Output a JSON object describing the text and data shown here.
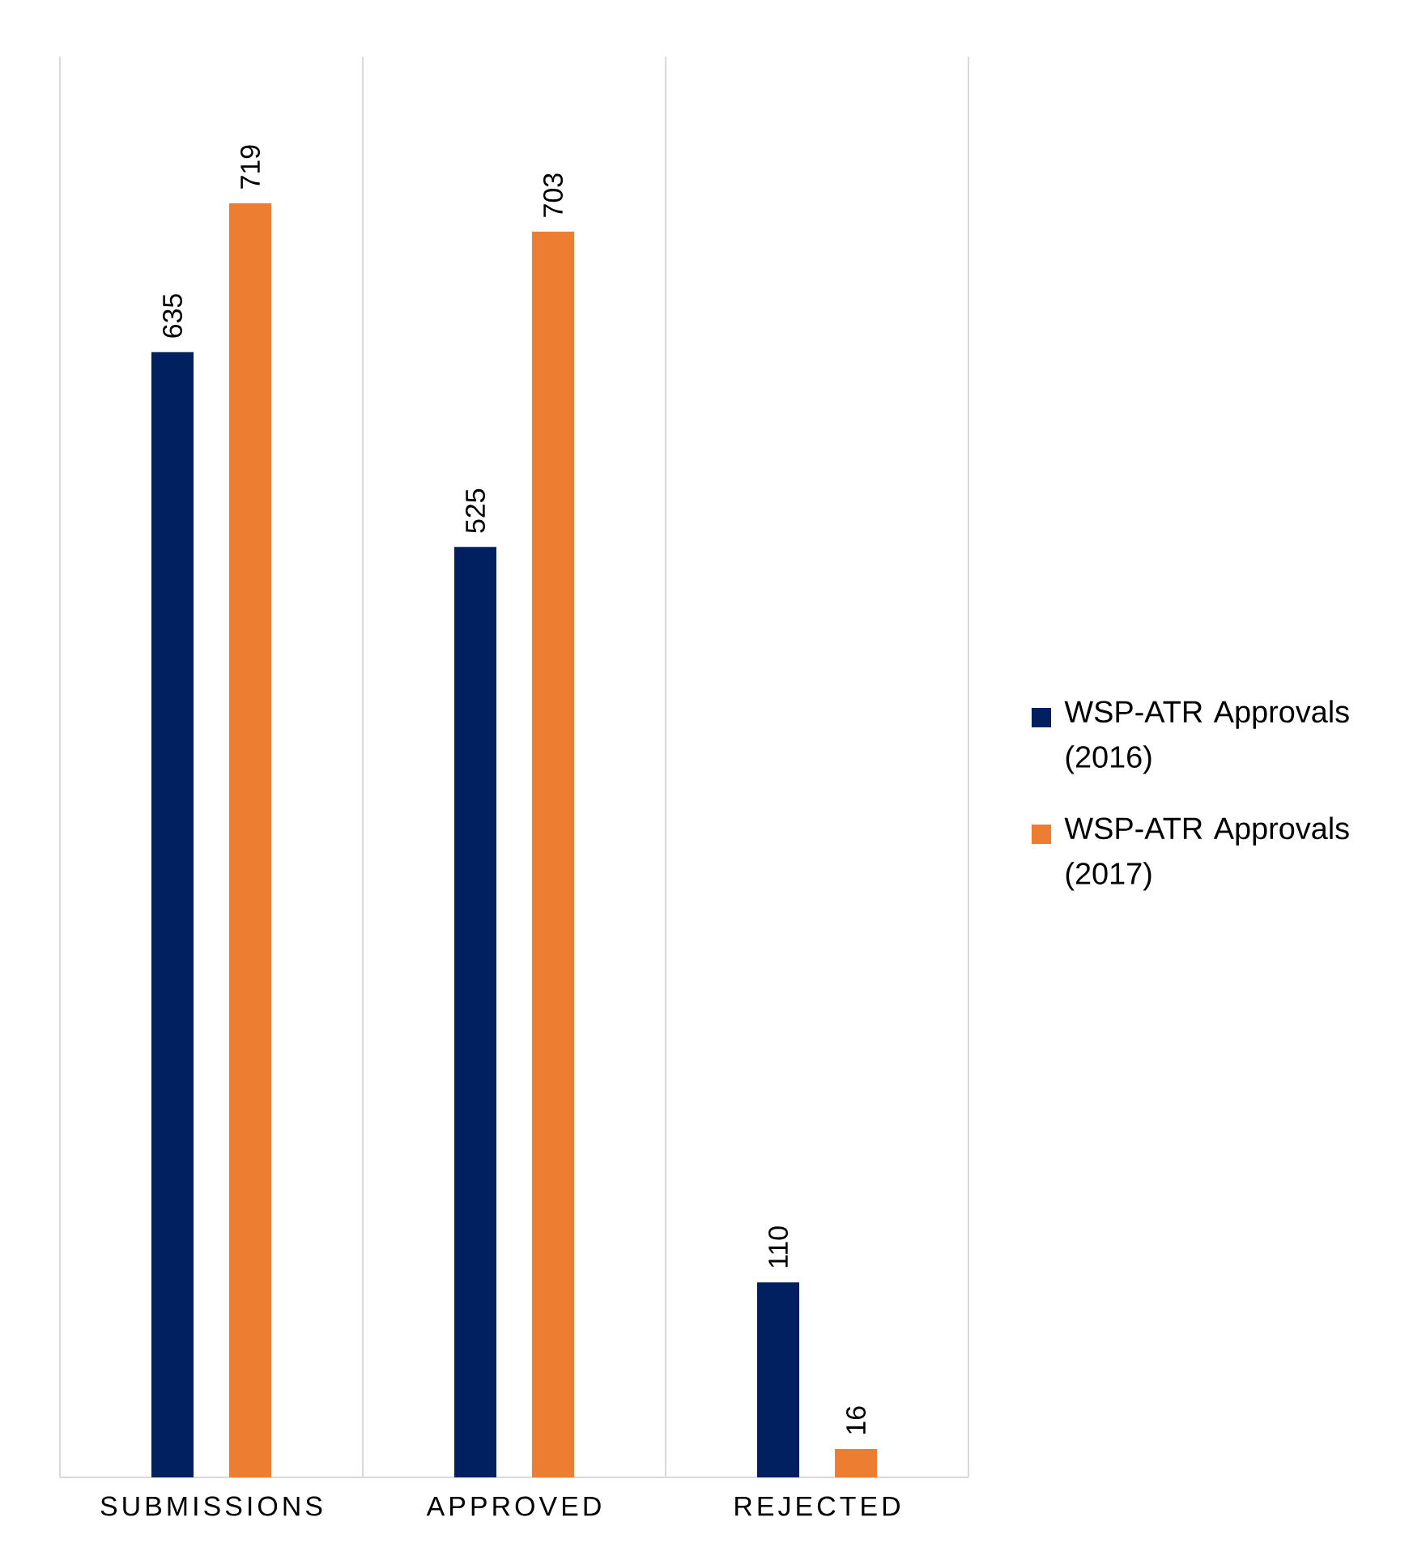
{
  "chart_data": {
    "type": "bar",
    "categories": [
      "SUBMISSIONS",
      "APPROVED",
      "REJECTED"
    ],
    "series": [
      {
        "name": "WSP-ATR Approvals (2016)",
        "color": "#002060",
        "values": [
          635,
          525,
          110
        ]
      },
      {
        "name": "WSP-ATR Approvals (2017)",
        "color": "#ed7d31",
        "values": [
          719,
          703,
          16
        ]
      }
    ],
    "data_labels": true,
    "grid": "x",
    "legend": "right"
  }
}
